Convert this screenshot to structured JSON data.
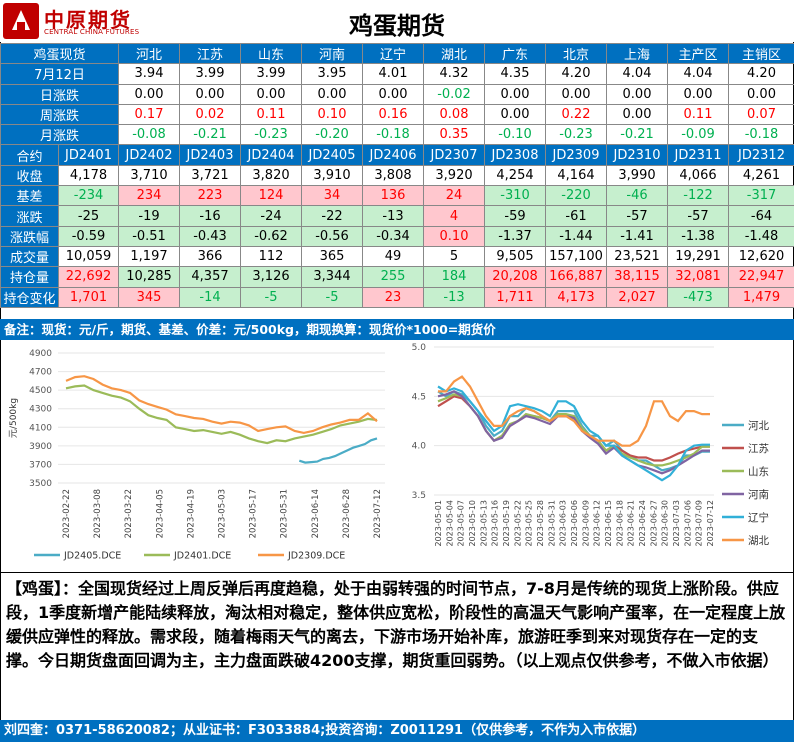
{
  "header": {
    "logo_cn": "中原期货",
    "logo_en": "CENTRAL CHINA FUTURES",
    "title": "鸡蛋期货"
  },
  "spot": {
    "corner_label": "鸡蛋现货",
    "regions": [
      "河北",
      "江苏",
      "山东",
      "河南",
      "辽宁",
      "湖北",
      "广东",
      "北京",
      "上海",
      "主产区",
      "主销区"
    ],
    "rows": [
      {
        "label": "7月12日",
        "values": [
          "3.94",
          "3.99",
          "3.99",
          "3.95",
          "4.01",
          "4.32",
          "4.35",
          "4.20",
          "4.04",
          "4.04",
          "4.20"
        ],
        "colors": [
          "blk",
          "blk",
          "blk",
          "blk",
          "blk",
          "blk",
          "blk",
          "blk",
          "blk",
          "blk",
          "blk"
        ]
      },
      {
        "label": "日涨跌",
        "values": [
          "0.00",
          "0.00",
          "0.00",
          "0.00",
          "0.00",
          "-0.02",
          "0.00",
          "0.00",
          "0.00",
          "0.00",
          "0.00"
        ],
        "colors": [
          "blk",
          "blk",
          "blk",
          "blk",
          "blk",
          "green",
          "blk",
          "blk",
          "blk",
          "blk",
          "blk"
        ]
      },
      {
        "label": "周涨跌",
        "values": [
          "0.17",
          "0.02",
          "0.11",
          "0.10",
          "0.16",
          "0.08",
          "0.00",
          "0.22",
          "0.00",
          "0.11",
          "0.07"
        ],
        "colors": [
          "red",
          "red",
          "red",
          "red",
          "red",
          "red",
          "blk",
          "red",
          "blk",
          "red",
          "red"
        ]
      },
      {
        "label": "月涨跌",
        "values": [
          "-0.08",
          "-0.21",
          "-0.23",
          "-0.20",
          "-0.18",
          "0.35",
          "-0.10",
          "-0.23",
          "-0.21",
          "-0.09",
          "-0.18"
        ],
        "colors": [
          "green",
          "green",
          "green",
          "green",
          "green",
          "red",
          "green",
          "green",
          "green",
          "green",
          "green"
        ]
      }
    ]
  },
  "futures": {
    "corner_label": "合约",
    "contracts": [
      "JD2401",
      "JD2402",
      "JD2403",
      "JD2404",
      "JD2405",
      "JD2406",
      "JD2307",
      "JD2308",
      "JD2309",
      "JD2310",
      "JD2311",
      "JD2312"
    ],
    "rows": [
      {
        "label": "收盘",
        "values": [
          "4,178",
          "3,710",
          "3,721",
          "3,820",
          "3,910",
          "3,808",
          "3,920",
          "4,254",
          "4,164",
          "3,990",
          "4,066",
          "4,261"
        ],
        "styles": [
          "",
          "",
          "",
          "",
          "",
          "",
          "",
          "",
          "",
          "",
          "",
          ""
        ],
        "colors": [
          "blk",
          "blk",
          "blk",
          "blk",
          "blk",
          "blk",
          "blk",
          "blk",
          "blk",
          "blk",
          "blk",
          "blk"
        ]
      },
      {
        "label": "基差",
        "values": [
          "-234",
          "234",
          "223",
          "124",
          "34",
          "136",
          "24",
          "-310",
          "-220",
          "-46",
          "-122",
          "-317"
        ],
        "styles": [
          "neg",
          "pos",
          "pos",
          "pos",
          "pos",
          "pos",
          "pos",
          "neg",
          "neg",
          "neg",
          "neg",
          "neg"
        ],
        "colors": [
          "green",
          "red",
          "red",
          "red",
          "red",
          "red",
          "red",
          "green",
          "green",
          "green",
          "green",
          "green"
        ]
      },
      {
        "label": "涨跌",
        "values": [
          "-25",
          "-19",
          "-16",
          "-24",
          "-22",
          "-13",
          "4",
          "-59",
          "-61",
          "-57",
          "-57",
          "-64"
        ],
        "styles": [
          "neg",
          "neg",
          "neg",
          "neg",
          "neg",
          "neg",
          "pos",
          "neg",
          "neg",
          "neg",
          "neg",
          "neg"
        ],
        "colors": [
          "blk",
          "blk",
          "blk",
          "blk",
          "blk",
          "blk",
          "red",
          "blk",
          "blk",
          "blk",
          "blk",
          "blk"
        ]
      },
      {
        "label": "涨跌幅",
        "values": [
          "-0.59",
          "-0.51",
          "-0.43",
          "-0.62",
          "-0.56",
          "-0.34",
          "0.10",
          "-1.37",
          "-1.44",
          "-1.41",
          "-1.38",
          "-1.48"
        ],
        "styles": [
          "neg",
          "neg",
          "neg",
          "neg",
          "neg",
          "neg",
          "pos",
          "neg",
          "neg",
          "neg",
          "neg",
          "neg"
        ],
        "colors": [
          "blk",
          "blk",
          "blk",
          "blk",
          "blk",
          "blk",
          "red",
          "blk",
          "blk",
          "blk",
          "blk",
          "blk"
        ]
      },
      {
        "label": "成交量",
        "values": [
          "10,059",
          "1,197",
          "366",
          "112",
          "365",
          "49",
          "5",
          "9,505",
          "157,100",
          "23,521",
          "19,291",
          "12,620"
        ],
        "styles": [
          "",
          "",
          "",
          "",
          "",
          "",
          "",
          "",
          "",
          "",
          "",
          ""
        ],
        "colors": [
          "blk",
          "blk",
          "blk",
          "blk",
          "blk",
          "blk",
          "blk",
          "blk",
          "blk",
          "blk",
          "blk",
          "blk"
        ]
      },
      {
        "label": "持仓量",
        "values": [
          "22,692",
          "10,285",
          "4,357",
          "3,126",
          "3,344",
          "255",
          "184",
          "20,208",
          "166,887",
          "38,115",
          "32,081",
          "22,947"
        ],
        "styles": [
          "pos",
          "neg",
          "neg",
          "neg",
          "neg",
          "neg",
          "neg",
          "pos",
          "pos",
          "pos",
          "pos",
          "pos"
        ],
        "colors": [
          "red",
          "blk",
          "blk",
          "blk",
          "blk",
          "green",
          "green",
          "red",
          "red",
          "red",
          "red",
          "red"
        ]
      },
      {
        "label": "持仓变化",
        "values": [
          "1,701",
          "345",
          "-14",
          "-5",
          "-5",
          "23",
          "-13",
          "1,711",
          "4,173",
          "2,027",
          "-473",
          "1,479"
        ],
        "styles": [
          "pos",
          "pos",
          "neg",
          "neg",
          "neg",
          "pos",
          "neg",
          "pos",
          "pos",
          "pos",
          "neg",
          "pos"
        ],
        "colors": [
          "red",
          "red",
          "green",
          "green",
          "green",
          "red",
          "green",
          "red",
          "red",
          "red",
          "green",
          "red"
        ]
      }
    ]
  },
  "note": "备注：现货：元/斤，期货、基差、价差：元/500kg，期现换算：现货价*1000=期货价",
  "chart_data": [
    {
      "type": "line",
      "title": "",
      "ylabel": "元/500kg",
      "ylim": [
        3500,
        4900
      ],
      "yticks": [
        3500,
        3700,
        3900,
        4100,
        4300,
        4500,
        4700,
        4900
      ],
      "x_ticks": [
        "2023-02-22",
        "2023-03-08",
        "2023-03-22",
        "2023-04-05",
        "2023-04-19",
        "2023-05-03",
        "2023-05-17",
        "2023-05-31",
        "2023-06-14",
        "2023-06-28",
        "2023-07-12"
      ],
      "series": [
        {
          "name": "JD2405.DCE",
          "color": "#4bacc6",
          "x_start": 7.5,
          "values": [
            3740,
            3720,
            3725,
            3730,
            3760,
            3770,
            3790,
            3820,
            3850,
            3880,
            3900,
            3920,
            3960,
            3980
          ]
        },
        {
          "name": "JD2401.DCE",
          "color": "#9bbb59",
          "x_start": 0,
          "values": [
            4520,
            4540,
            4550,
            4500,
            4470,
            4440,
            4420,
            4380,
            4300,
            4230,
            4200,
            4180,
            4100,
            4080,
            4060,
            4070,
            4050,
            4030,
            4050,
            4020,
            3980,
            3950,
            3930,
            3960,
            3950,
            3980,
            4000,
            4020,
            4050,
            4080,
            4120,
            4140,
            4160,
            4190,
            4178
          ]
        },
        {
          "name": "JD2309.DCE",
          "color": "#f79646",
          "x_start": 0,
          "values": [
            4600,
            4640,
            4650,
            4620,
            4560,
            4520,
            4500,
            4470,
            4390,
            4350,
            4320,
            4290,
            4240,
            4220,
            4200,
            4190,
            4160,
            4140,
            4160,
            4150,
            4120,
            4060,
            4080,
            4100,
            4110,
            4060,
            4040,
            4060,
            4100,
            4130,
            4150,
            4180,
            4180,
            4250,
            4164
          ]
        }
      ],
      "legend": "bottom"
    },
    {
      "type": "line",
      "title": "",
      "ylim": [
        3.5,
        5.0
      ],
      "yticks": [
        3.5,
        4.0,
        4.5,
        5.0
      ],
      "x_ticks": [
        "2023-05-01",
        "2023-05-04",
        "2023-05-07",
        "2023-05-10",
        "2023-05-13",
        "2023-05-16",
        "2023-05-19",
        "2023-05-22",
        "2023-05-25",
        "2023-05-28",
        "2023-05-31",
        "2023-06-03",
        "2023-06-06",
        "2023-06-09",
        "2023-06-12",
        "2023-06-15",
        "2023-06-18",
        "2023-06-21",
        "2023-06-24",
        "2023-06-27",
        "2023-06-30",
        "2023-07-03",
        "2023-07-06",
        "2023-07-09",
        "2023-07-12"
      ],
      "series": [
        {
          "name": "河北",
          "color": "#4bacc6",
          "values": [
            4.55,
            4.5,
            4.55,
            4.52,
            4.45,
            4.35,
            4.2,
            4.1,
            4.15,
            4.3,
            4.3,
            4.38,
            4.35,
            4.3,
            4.25,
            4.35,
            4.35,
            4.35,
            4.2,
            4.1,
            4.1,
            4.0,
            4.05,
            3.95,
            3.9,
            3.85,
            3.85,
            3.8,
            3.75,
            3.77,
            3.8,
            3.9,
            3.9,
            3.94,
            3.94
          ]
        },
        {
          "name": "江苏",
          "color": "#c0504d",
          "values": [
            4.4,
            4.45,
            4.5,
            4.48,
            4.4,
            4.3,
            4.15,
            4.05,
            4.1,
            4.2,
            4.25,
            4.3,
            4.3,
            4.28,
            4.25,
            4.3,
            4.3,
            4.28,
            4.15,
            4.1,
            4.05,
            3.95,
            4.0,
            3.95,
            3.9,
            3.88,
            3.88,
            3.85,
            3.85,
            3.88,
            3.92,
            3.95,
            3.97,
            3.99,
            3.99
          ]
        },
        {
          "name": "山东",
          "color": "#9bbb59",
          "values": [
            4.45,
            4.48,
            4.52,
            4.5,
            4.4,
            4.3,
            4.15,
            4.05,
            4.1,
            4.22,
            4.25,
            4.32,
            4.3,
            4.28,
            4.25,
            4.32,
            4.32,
            4.3,
            4.18,
            4.1,
            4.05,
            3.95,
            4.0,
            3.92,
            3.88,
            3.85,
            3.82,
            3.8,
            3.8,
            3.82,
            3.85,
            3.88,
            3.92,
            3.99,
            3.99
          ]
        },
        {
          "name": "河南",
          "color": "#8064a2",
          "values": [
            4.5,
            4.52,
            4.55,
            4.5,
            4.4,
            4.3,
            4.15,
            4.05,
            4.08,
            4.2,
            4.25,
            4.3,
            4.28,
            4.25,
            4.22,
            4.3,
            4.3,
            4.28,
            4.15,
            4.08,
            4.02,
            3.92,
            3.98,
            3.9,
            3.85,
            3.8,
            3.78,
            3.75,
            3.72,
            3.75,
            3.8,
            3.85,
            3.9,
            3.95,
            3.95
          ]
        },
        {
          "name": "辽宁",
          "color": "#31b0d8",
          "values": [
            4.6,
            4.55,
            4.58,
            4.55,
            4.45,
            4.35,
            4.25,
            4.15,
            4.2,
            4.4,
            4.42,
            4.4,
            4.38,
            4.35,
            4.3,
            4.45,
            4.45,
            4.4,
            4.25,
            4.15,
            4.1,
            4.0,
            4.0,
            3.9,
            3.85,
            3.8,
            3.75,
            3.7,
            3.65,
            3.7,
            3.8,
            3.95,
            4.0,
            4.01,
            4.01
          ]
        },
        {
          "name": "湖北",
          "color": "#f79646",
          "values": [
            4.55,
            4.55,
            4.65,
            4.7,
            4.6,
            4.45,
            4.3,
            4.2,
            4.2,
            4.3,
            4.35,
            4.38,
            4.35,
            4.3,
            4.25,
            4.3,
            4.3,
            4.25,
            4.15,
            4.1,
            4.05,
            4.05,
            4.05,
            4.0,
            4.0,
            4.05,
            4.2,
            4.45,
            4.45,
            4.3,
            4.25,
            4.35,
            4.35,
            4.32,
            4.32
          ]
        }
      ],
      "legend": "right"
    }
  ],
  "comment": "【鸡蛋】：全国现货经过上周反弹后再度趋稳，处于由弱转强的时间节点，7-8月是传统的现货上涨阶段。供应段，1季度新增产能陆续释放，淘汰相对稳定，整体供应宽松，阶段性的高温天气影响产蛋率，在一定程度上放缓供应弹性的释放。需求段，随着梅雨天气的离去，下游市场开始补库，旅游旺季到来对现货存在一定的支撑。今日期货盘面回调为主，主力盘面跌破4200支撑，期货重回弱势。（以上观点仅供参考，不做入市依据）",
  "footer": "刘四奎：0371-58620082；从业证书：F3033884;投资咨询：Z0011291（仅供参考，不作为入市依据）"
}
